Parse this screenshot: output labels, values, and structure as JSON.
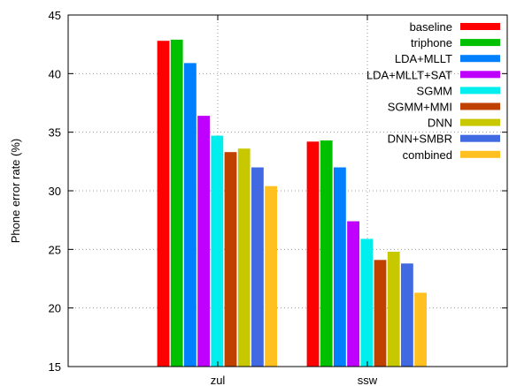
{
  "chart_data": {
    "type": "bar",
    "title": "",
    "xlabel": "",
    "ylabel": "Phone error rate (%)",
    "ylim": [
      15,
      45
    ],
    "yticks": [
      15,
      20,
      25,
      30,
      35,
      40,
      45
    ],
    "categories": [
      "zul",
      "ssw"
    ],
    "grid": true,
    "legend_position": "top-right",
    "series": [
      {
        "name": "baseline",
        "color": "#ff0000",
        "values": [
          42.8,
          34.2
        ]
      },
      {
        "name": "triphone",
        "color": "#00c000",
        "values": [
          42.9,
          34.3
        ]
      },
      {
        "name": "LDA+MLLT",
        "color": "#0080ff",
        "values": [
          40.9,
          32.0
        ]
      },
      {
        "name": "LDA+MLLT+SAT",
        "color": "#c000ff",
        "values": [
          36.4,
          27.4
        ]
      },
      {
        "name": "SGMM",
        "color": "#00eeee",
        "values": [
          34.7,
          25.9
        ]
      },
      {
        "name": "SGMM+MMI",
        "color": "#c04000",
        "values": [
          33.3,
          24.1
        ]
      },
      {
        "name": "DNN",
        "color": "#c8c800",
        "values": [
          33.6,
          24.8
        ]
      },
      {
        "name": "DNN+SMBR",
        "color": "#4169e1",
        "values": [
          32.0,
          23.8
        ]
      },
      {
        "name": "combined",
        "color": "#ffc020",
        "values": [
          30.4,
          21.3
        ]
      }
    ]
  }
}
